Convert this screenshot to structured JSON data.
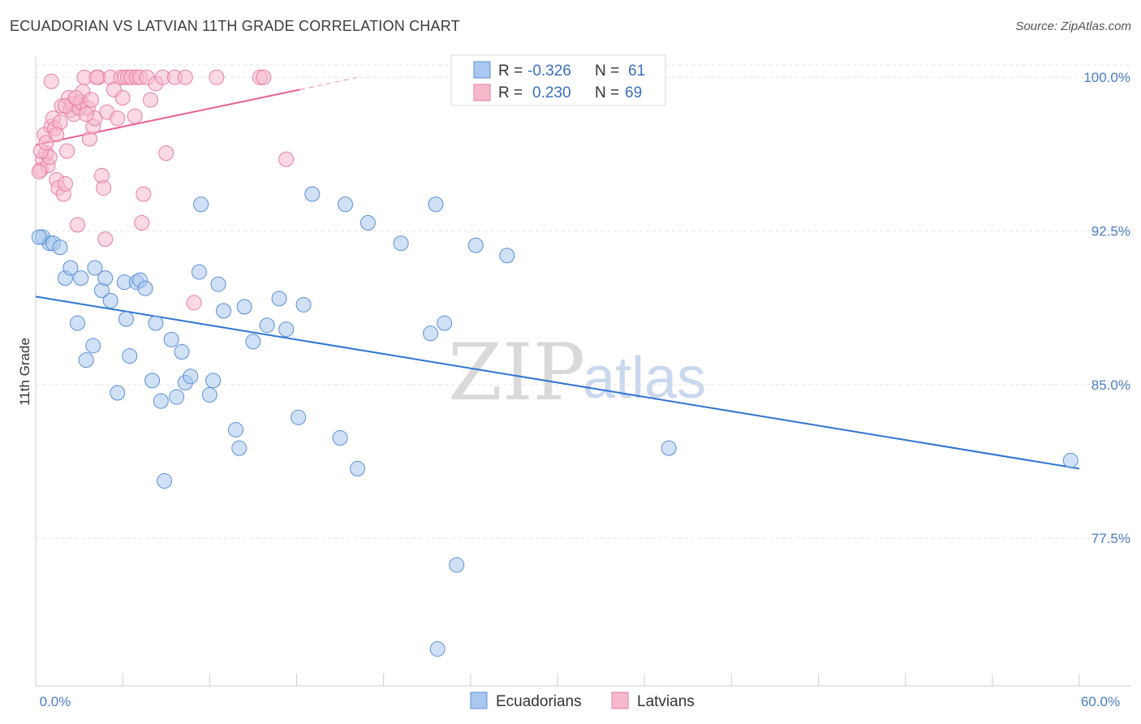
{
  "header": {
    "title": "ECUADORIAN VS LATVIAN 11TH GRADE CORRELATION CHART",
    "source": "Source: ZipAtlas.com"
  },
  "watermark": {
    "zip": "ZIP",
    "atlas": "atlas"
  },
  "colors": {
    "blue_fill": "#a9c8ef",
    "blue_stroke": "#5b8fd6",
    "blue_line": "#2e74d0",
    "pink_fill": "#f6b9cc",
    "pink_stroke": "#e87ea3",
    "pink_line": "#e8628f",
    "grid": "#e3e3e3",
    "tick_text": "#4a7cc4"
  },
  "legend": {
    "rows": [
      {
        "r_label": "R =",
        "r_value": "-0.326",
        "n_label": "N =",
        "n_value": "61"
      },
      {
        "r_label": "R =",
        "r_value": "0.230",
        "n_label": "N =",
        "n_value": "69"
      }
    ]
  },
  "bottom_legend": {
    "items": [
      "Ecuadorians",
      "Latvians"
    ]
  },
  "chart_data": {
    "type": "scatter",
    "title": "ECUADORIAN VS LATVIAN 11TH GRADE CORRELATION CHART",
    "xlabel": "",
    "ylabel": "11th Grade",
    "xlim": [
      0,
      60
    ],
    "ylim": [
      70.3,
      101.0
    ],
    "x_tick_labels": [
      "0.0%",
      "60.0%"
    ],
    "y_ticks": [
      77.5,
      85.0,
      92.5,
      100.0
    ],
    "y_tick_labels": [
      "77.5%",
      "85.0%",
      "92.5%",
      "100.0%"
    ],
    "grid": true,
    "legend_position": "top-center",
    "series": [
      {
        "name": "Ecuadorians",
        "r": -0.326,
        "n": 61,
        "trend": {
          "x": [
            0,
            60
          ],
          "y": [
            89.3,
            80.9
          ]
        },
        "points": [
          [
            0.4,
            92.2
          ],
          [
            0.8,
            91.9
          ],
          [
            1.0,
            91.9
          ],
          [
            1.4,
            91.7
          ],
          [
            1.7,
            90.2
          ],
          [
            2.0,
            90.7
          ],
          [
            2.4,
            88.0
          ],
          [
            2.6,
            90.2
          ],
          [
            2.9,
            86.2
          ],
          [
            3.3,
            86.9
          ],
          [
            3.4,
            90.7
          ],
          [
            3.8,
            89.6
          ],
          [
            4.0,
            90.2
          ],
          [
            4.3,
            89.1
          ],
          [
            4.7,
            84.6
          ],
          [
            5.1,
            90.0
          ],
          [
            5.2,
            88.2
          ],
          [
            5.4,
            86.4
          ],
          [
            5.8,
            90.0
          ],
          [
            6.0,
            90.1
          ],
          [
            6.3,
            89.7
          ],
          [
            6.7,
            85.2
          ],
          [
            6.9,
            88.0
          ],
          [
            7.2,
            84.2
          ],
          [
            7.8,
            87.2
          ],
          [
            8.1,
            84.4
          ],
          [
            8.4,
            86.6
          ],
          [
            8.6,
            85.1
          ],
          [
            8.9,
            85.4
          ],
          [
            9.4,
            90.5
          ],
          [
            9.5,
            93.8
          ],
          [
            10.0,
            84.5
          ],
          [
            10.2,
            85.2
          ],
          [
            10.5,
            89.9
          ],
          [
            10.8,
            88.6
          ],
          [
            11.5,
            82.8
          ],
          [
            11.7,
            81.9
          ],
          [
            12.0,
            88.8
          ],
          [
            12.5,
            87.1
          ],
          [
            13.3,
            87.9
          ],
          [
            14.0,
            89.2
          ],
          [
            14.4,
            87.7
          ],
          [
            15.1,
            83.4
          ],
          [
            15.4,
            88.9
          ],
          [
            15.9,
            94.3
          ],
          [
            17.5,
            82.4
          ],
          [
            17.8,
            93.8
          ],
          [
            18.5,
            80.9
          ],
          [
            19.1,
            92.9
          ],
          [
            21.0,
            91.9
          ],
          [
            22.7,
            87.5
          ],
          [
            23.0,
            93.8
          ],
          [
            23.5,
            88.0
          ],
          [
            23.1,
            72.1
          ],
          [
            24.2,
            76.2
          ],
          [
            25.3,
            91.8
          ],
          [
            27.1,
            91.3
          ],
          [
            36.4,
            81.9
          ],
          [
            59.5,
            81.3
          ],
          [
            7.4,
            80.3
          ],
          [
            0.2,
            92.2
          ]
        ]
      },
      {
        "name": "Latvians",
        "r": 0.23,
        "n": 69,
        "trend": {
          "x": [
            0,
            15.2
          ],
          "y": [
            96.7,
            99.4
          ]
        },
        "trend_dashed": {
          "x": [
            15.2,
            18.5
          ],
          "y": [
            99.4,
            100.0
          ]
        },
        "points": [
          [
            0.3,
            95.5
          ],
          [
            0.4,
            96.0
          ],
          [
            0.5,
            97.2
          ],
          [
            0.6,
            96.3
          ],
          [
            0.7,
            95.7
          ],
          [
            0.8,
            96.1
          ],
          [
            0.9,
            97.6
          ],
          [
            1.0,
            98.0
          ],
          [
            1.1,
            97.5
          ],
          [
            1.2,
            95.0
          ],
          [
            1.3,
            94.6
          ],
          [
            1.4,
            97.8
          ],
          [
            1.5,
            98.6
          ],
          [
            1.6,
            94.3
          ],
          [
            1.7,
            94.8
          ],
          [
            1.8,
            96.4
          ],
          [
            1.9,
            99.0
          ],
          [
            2.0,
            98.4
          ],
          [
            2.1,
            98.7
          ],
          [
            2.2,
            98.2
          ],
          [
            2.4,
            92.8
          ],
          [
            2.5,
            98.5
          ],
          [
            2.6,
            98.8
          ],
          [
            2.7,
            99.3
          ],
          [
            2.8,
            100.0
          ],
          [
            3.0,
            98.5
          ],
          [
            3.1,
            97.0
          ],
          [
            3.2,
            98.9
          ],
          [
            3.3,
            97.6
          ],
          [
            3.4,
            98.0
          ],
          [
            3.6,
            100.0
          ],
          [
            3.8,
            95.2
          ],
          [
            3.9,
            94.6
          ],
          [
            4.0,
            92.1
          ],
          [
            4.1,
            98.3
          ],
          [
            4.3,
            100.0
          ],
          [
            4.5,
            99.4
          ],
          [
            4.7,
            98.0
          ],
          [
            4.9,
            100.0
          ],
          [
            5.0,
            99.0
          ],
          [
            5.1,
            100.0
          ],
          [
            5.3,
            100.0
          ],
          [
            5.5,
            100.0
          ],
          [
            5.7,
            98.1
          ],
          [
            5.8,
            100.0
          ],
          [
            6.0,
            100.0
          ],
          [
            6.1,
            92.9
          ],
          [
            6.2,
            94.3
          ],
          [
            6.4,
            100.0
          ],
          [
            6.6,
            98.9
          ],
          [
            6.9,
            99.7
          ],
          [
            7.3,
            100.0
          ],
          [
            7.5,
            96.3
          ],
          [
            8.0,
            100.0
          ],
          [
            8.6,
            100.0
          ],
          [
            9.1,
            89.0
          ],
          [
            10.4,
            100.0
          ],
          [
            12.9,
            100.0
          ],
          [
            13.1,
            100.0
          ],
          [
            14.4,
            96.0
          ],
          [
            0.2,
            95.4
          ],
          [
            0.3,
            96.4
          ],
          [
            0.9,
            99.8
          ],
          [
            1.7,
            98.6
          ],
          [
            2.3,
            99.0
          ],
          [
            2.9,
            98.2
          ],
          [
            3.5,
            100.0
          ],
          [
            1.2,
            97.2
          ],
          [
            0.6,
            96.8
          ]
        ]
      }
    ]
  }
}
